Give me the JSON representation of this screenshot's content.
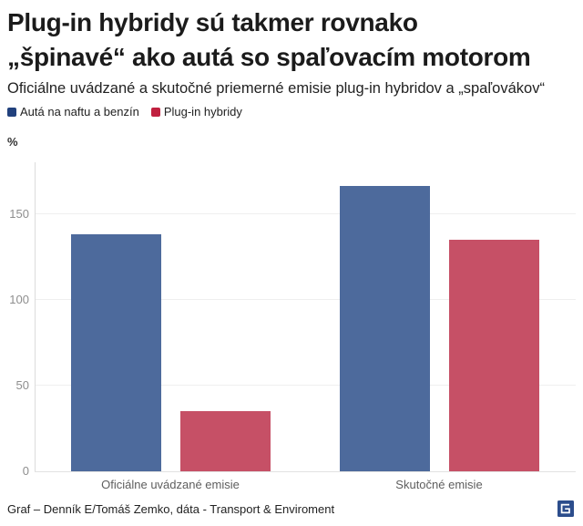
{
  "header": {
    "title_lines": [
      "Plug-in hybridy sú takmer rovnako",
      "„špinavé“ ako autá so spaľovacím motorom"
    ],
    "subtitle": "Oficiálne uvádzané a skutočné priemerné emisie plug-in hybridov a „spaľovákov“"
  },
  "chart_data": {
    "type": "bar",
    "title": "Plug-in hybridy sú takmer rovnako „špinavé“ ako autá so spaľovacím motorom",
    "categories": [
      "Oficiálne uvádzané emisie",
      "Skutočné emisie"
    ],
    "series": [
      {
        "name": "Autá na naftu a benzín",
        "values": [
          138,
          166
        ],
        "bar_color": "#4d6a9c",
        "legend_color": "#21417d"
      },
      {
        "name": "Plug-in hybridy",
        "values": [
          35,
          135
        ],
        "bar_color": "#c65066",
        "legend_color": "#c0203f"
      }
    ],
    "xlabel": "",
    "ylabel": "%",
    "ylim": [
      0,
      180
    ],
    "yticks": [
      0,
      50,
      100,
      150
    ],
    "grid": true,
    "legend_position": "top-left"
  },
  "footer": {
    "source": "Graf – Denník E/Tomáš Zemko, dáta - Transport & Enviroment",
    "logo": "dennik-e-logo",
    "logo_color": "#2c4d8c"
  }
}
